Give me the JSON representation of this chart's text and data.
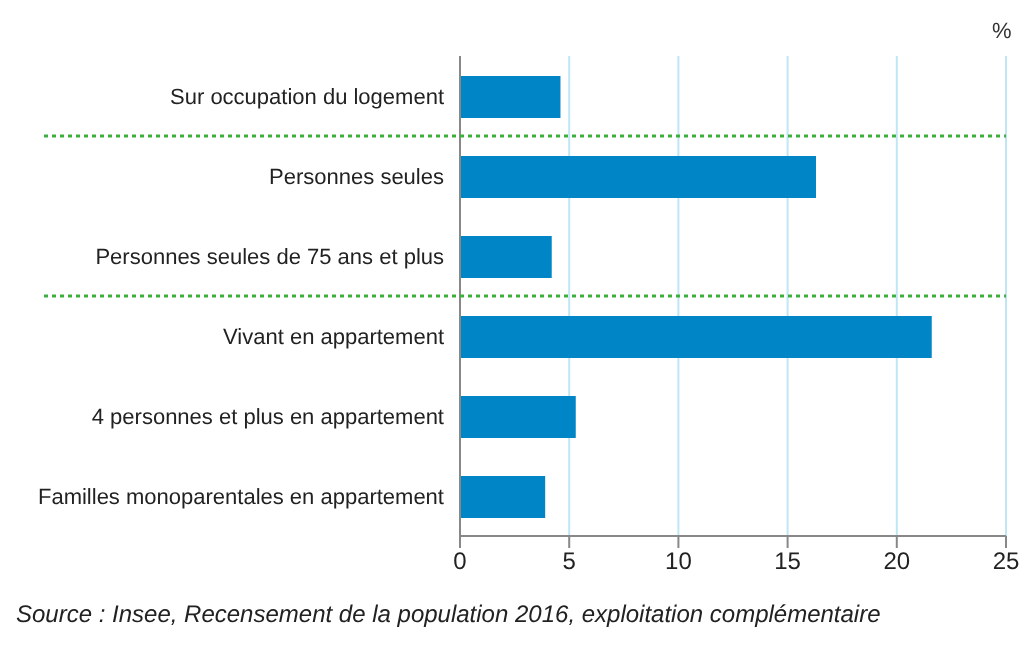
{
  "chart_data": {
    "type": "bar",
    "orientation": "horizontal",
    "xlabel": "%",
    "categories": [
      "Sur occupation du logement",
      "Personnes seules",
      "Personnes seules de 75 ans et plus",
      "Vivant en appartement",
      "4 personnes et plus en appartement",
      "Familles monoparentales en appartement"
    ],
    "values": [
      4.6,
      16.3,
      4.2,
      21.6,
      5.3,
      3.9
    ],
    "color": "#0085c7",
    "xlim": [
      0,
      25
    ],
    "xticks": [
      0,
      5,
      10,
      15,
      20,
      25
    ],
    "grid": "x",
    "annotations": [
      "Source : Insee, Recensement de la population 2016, exploitation complémentaire"
    ]
  }
}
